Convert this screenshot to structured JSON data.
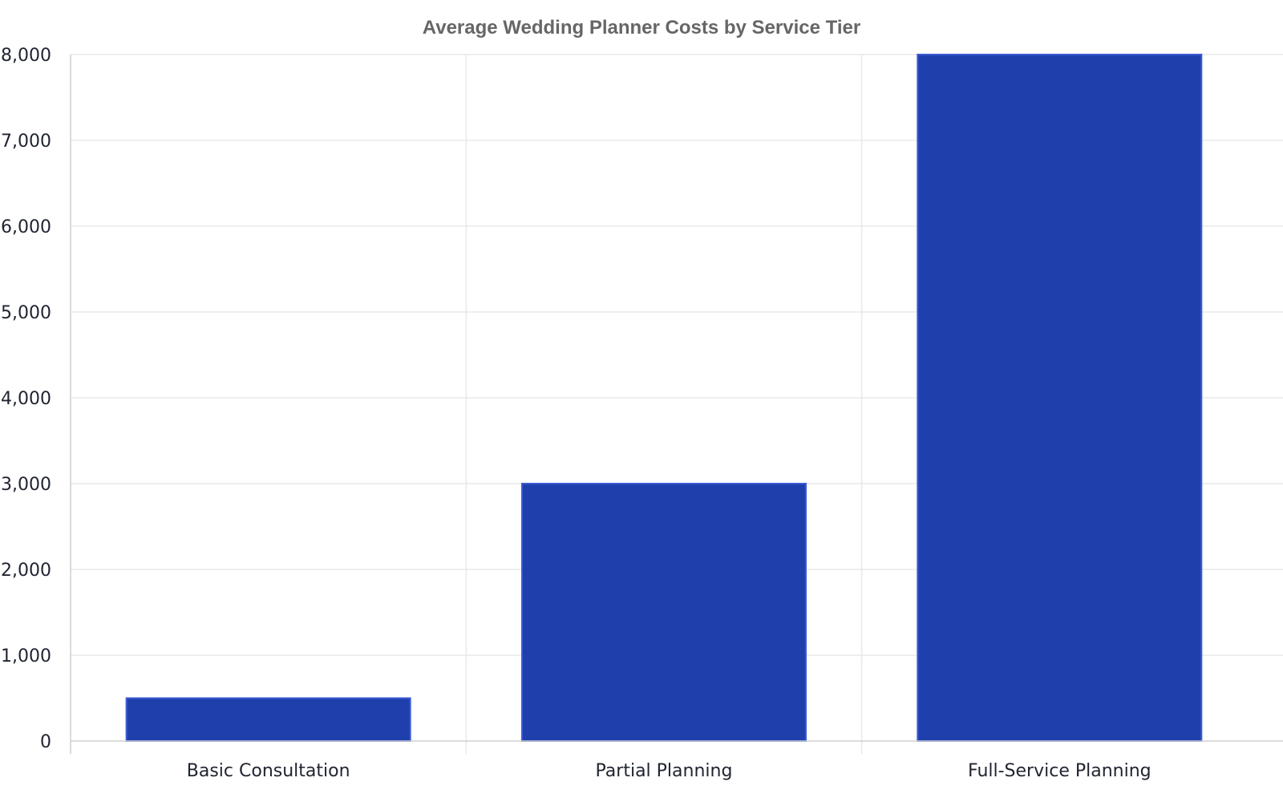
{
  "chart_data": {
    "type": "bar",
    "title": "Average Wedding Planner Costs by Service Tier",
    "xlabel": "",
    "ylabel": "",
    "categories": [
      "Basic Consultation",
      "Partial Planning",
      "Full-Service Planning"
    ],
    "values": [
      500,
      3000,
      8000
    ],
    "ylim": [
      0,
      8000
    ],
    "yticks": [
      0,
      1000,
      2000,
      3000,
      4000,
      5000,
      6000,
      7000,
      8000
    ],
    "ytick_labels": [
      "0",
      "1,000",
      "2,000",
      "3,000",
      "4,000",
      "5,000",
      "6,000",
      "7,000",
      "8,000"
    ],
    "grid": true,
    "legend": "none",
    "colors": {
      "bar_fill": "#1f3fad",
      "bar_edge": "#3b5bd4"
    }
  }
}
